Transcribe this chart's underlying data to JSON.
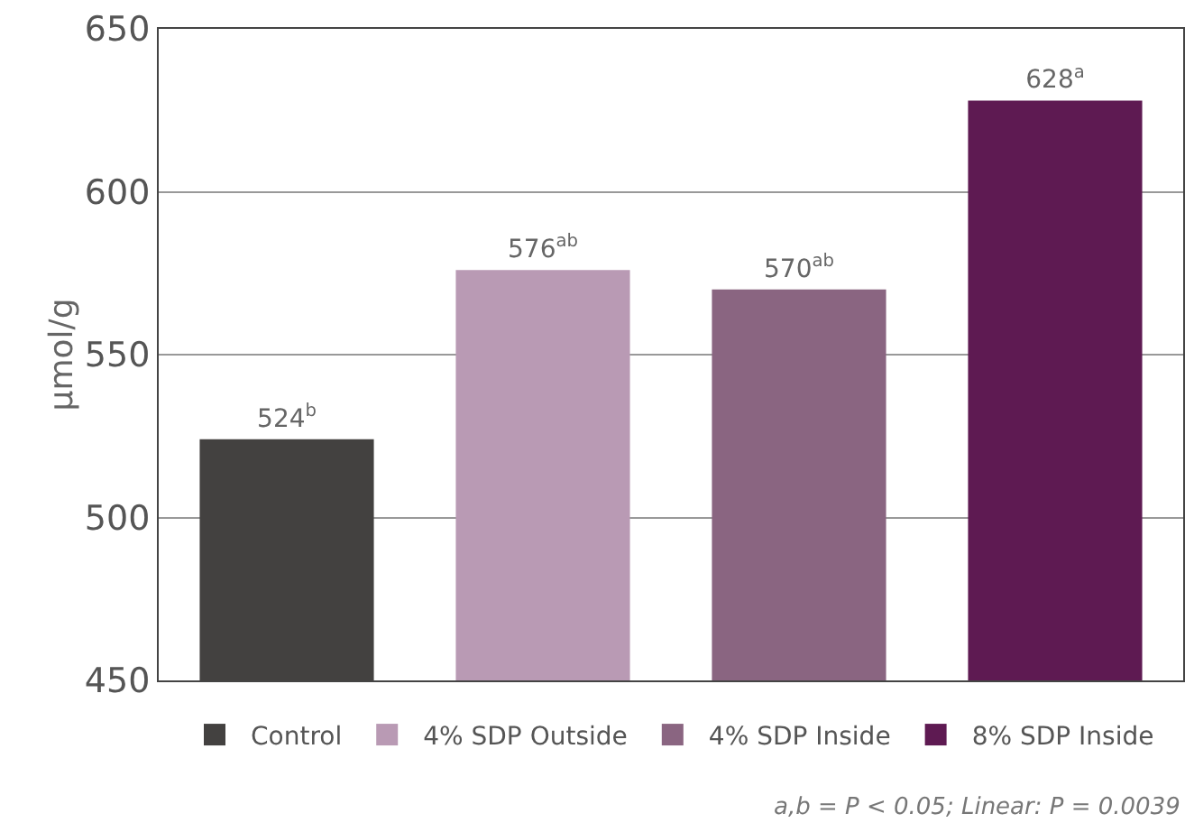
{
  "chart_data": {
    "type": "bar",
    "ylabel": "µmol/g",
    "categories": [
      null,
      null,
      null,
      null
    ],
    "series": [
      {
        "name": "Control",
        "color": "#434140",
        "values": [
          524,
          null,
          null,
          null
        ],
        "value_labels": [
          "524$^{b}$",
          null,
          null,
          null
        ]
      },
      {
        "name": "4% SDP Outside",
        "color": "#b99ab4",
        "values": [
          null,
          576,
          null,
          null
        ],
        "value_labels": [
          null,
          "576$^{ab}$",
          null,
          null
        ]
      },
      {
        "name": "4% SDP Inside",
        "color": "#8a6581",
        "values": [
          null,
          null,
          570,
          null
        ],
        "value_labels": [
          null,
          null,
          "570$^{ab}$",
          null
        ]
      },
      {
        "name": "8% SDP Inside",
        "color": "#5e1a52",
        "values": [
          null,
          null,
          null,
          628
        ],
        "value_labels": [
          null,
          null,
          null,
          "628$^{a}$"
        ]
      }
    ],
    "ylim": [
      450,
      650
    ],
    "yticks": [
      450,
      500,
      550,
      600,
      650
    ],
    "grid": "y",
    "legend": "bottom",
    "annotations": [
      "a,b = P < 0.05; Linear: P = 0.0039"
    ]
  }
}
